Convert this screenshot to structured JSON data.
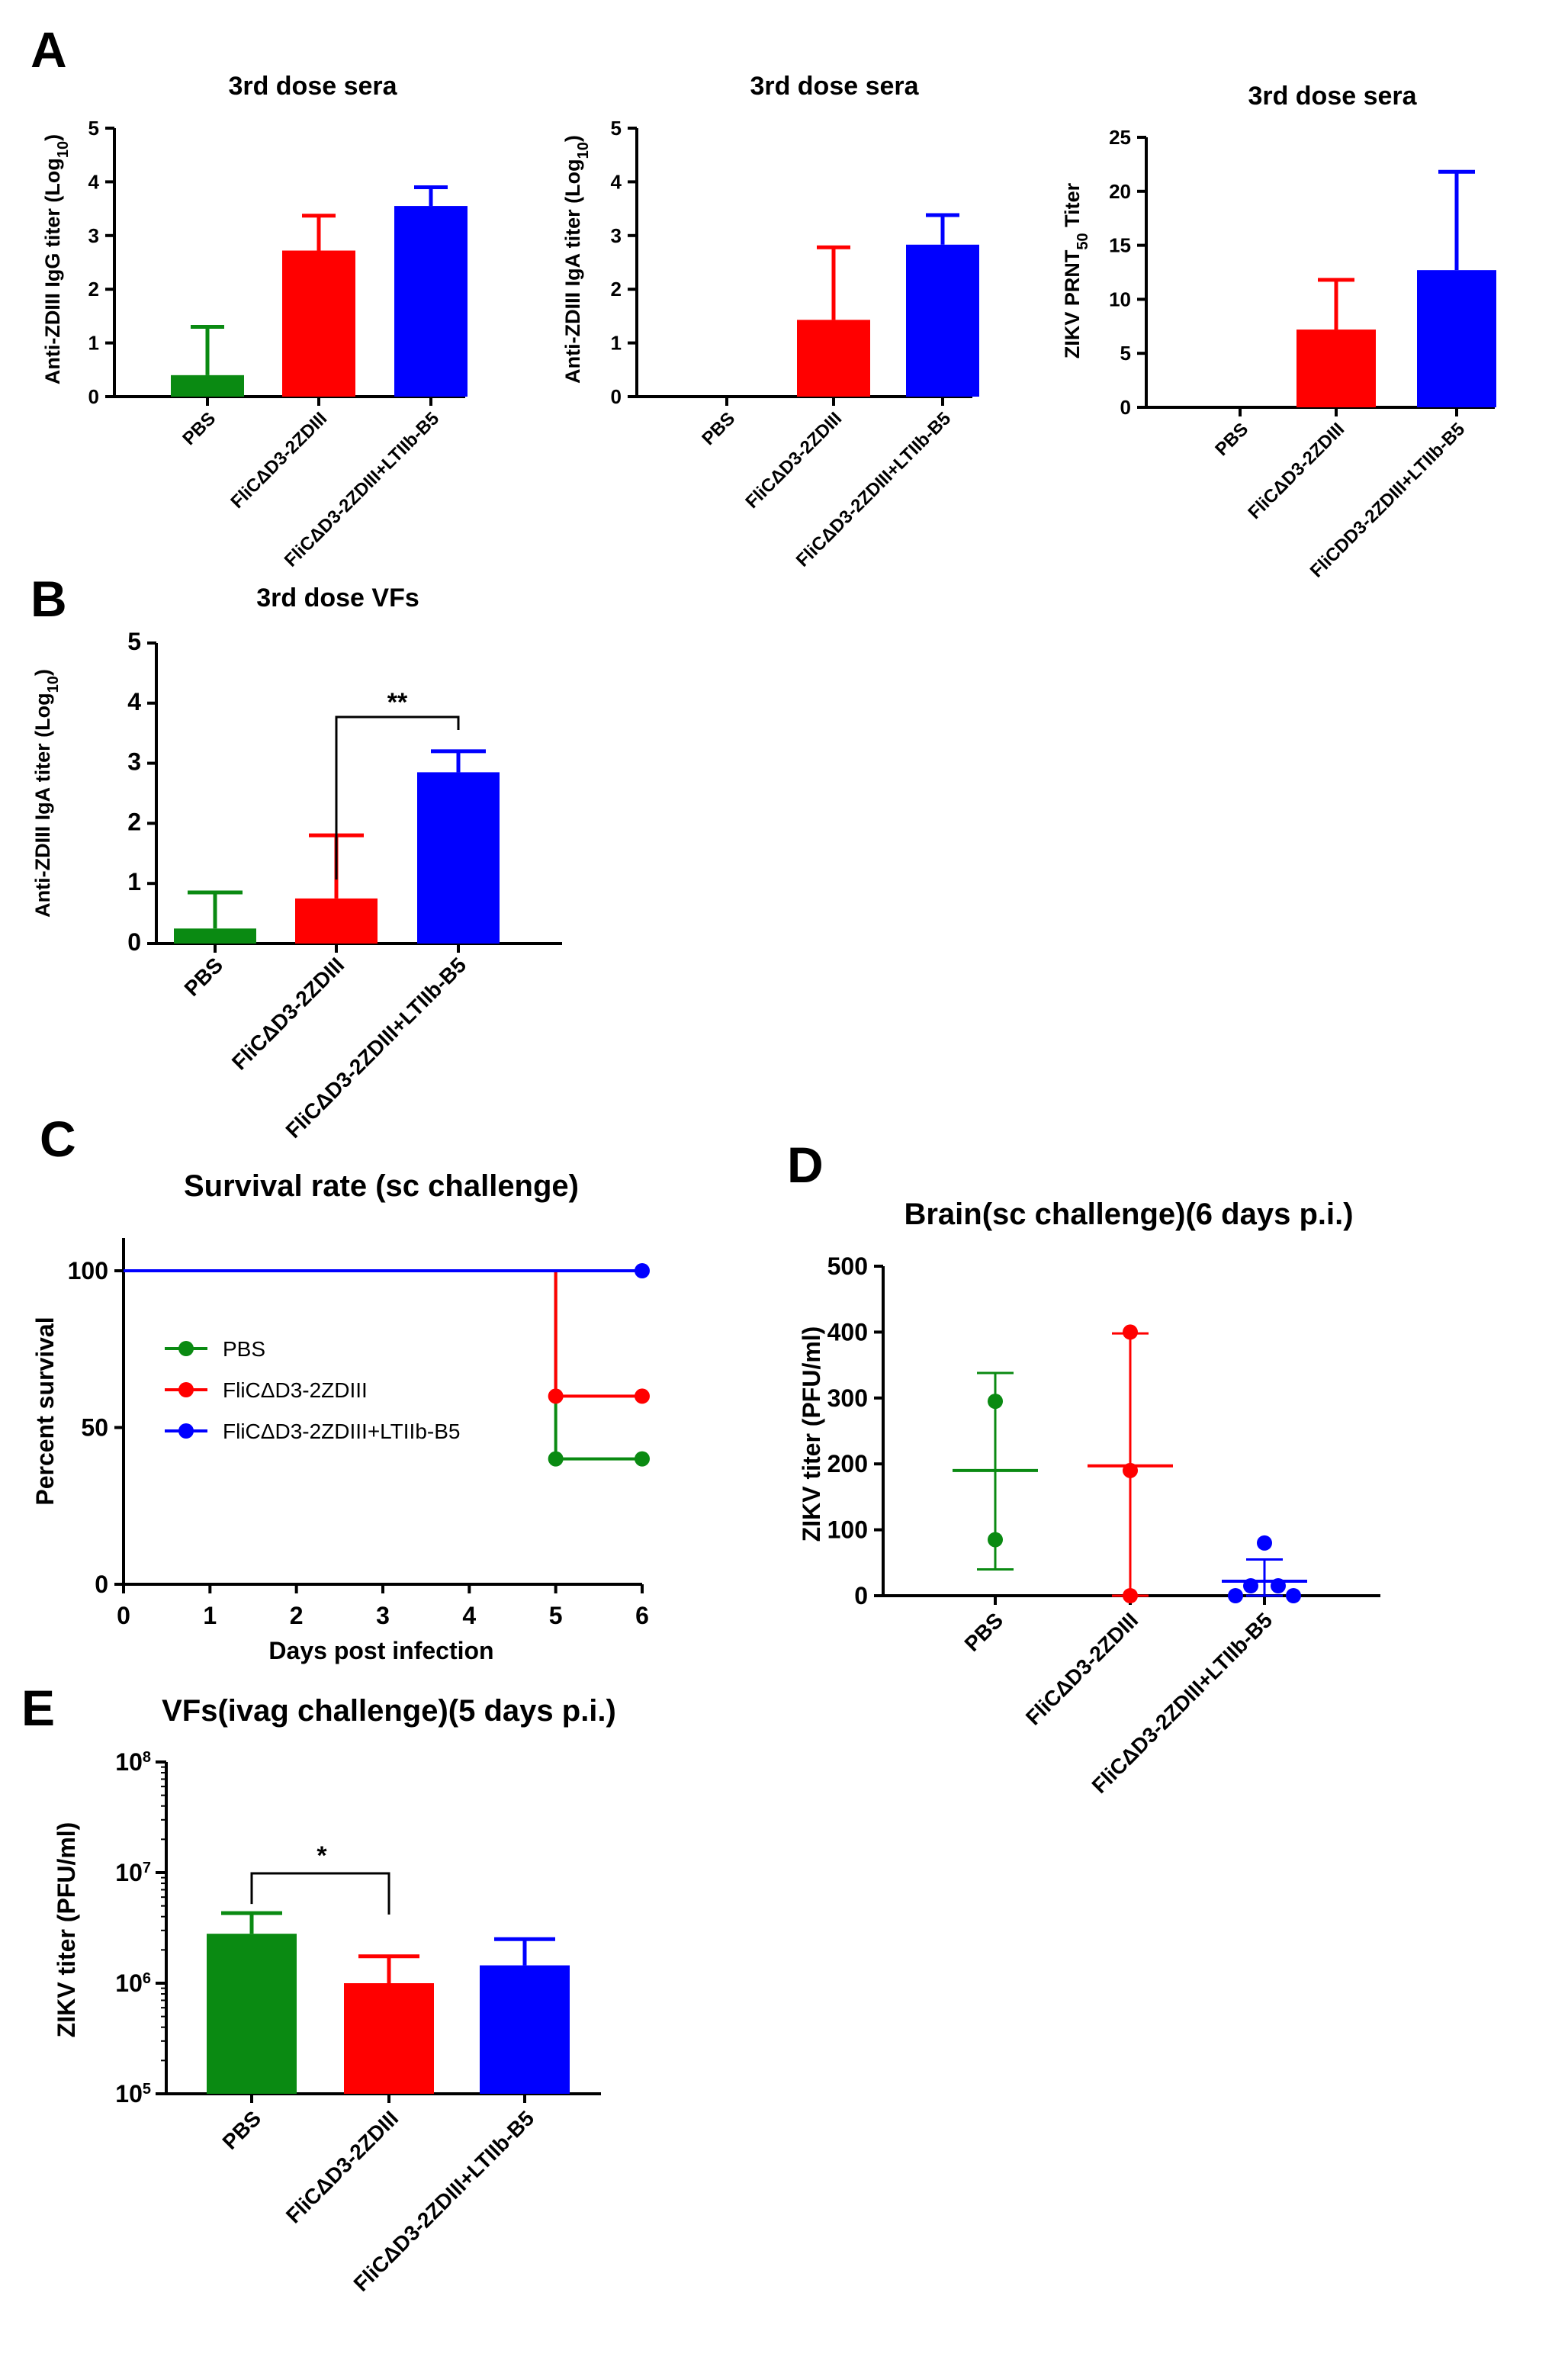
{
  "panels": [
    {
      "id": "A1",
      "letter": "A",
      "title": "3rd dose sera",
      "ylabel_main": "Anti-ZDIII IgG titer (Log",
      "ylabel_sub": "10",
      "ylabel_end": ")"
    },
    {
      "id": "A2",
      "letter": "",
      "title": "3rd dose sera",
      "ylabel_main": "Anti-ZDIII IgA titer (Log",
      "ylabel_sub": "10",
      "ylabel_end": ")"
    },
    {
      "id": "A3",
      "letter": "",
      "title": "3rd dose sera",
      "ylabel_main": "ZIKV PRNT",
      "ylabel_sub": "50",
      "ylabel_end": " Titer"
    },
    {
      "id": "B",
      "letter": "B",
      "title": "3rd dose VFs",
      "ylabel_main": "Anti-ZDIII IgA titer (Log",
      "ylabel_sub": "10",
      "ylabel_end": ")"
    },
    {
      "id": "C",
      "letter": "C",
      "title": "Survival rate (sc challenge)",
      "ylabel": "Percent survival",
      "xlabel": "Days post infection"
    },
    {
      "id": "D",
      "letter": "D",
      "title": "Brain(sc challenge)(6 days p.i.)",
      "ylabel": "ZIKV titer (PFU/ml)"
    },
    {
      "id": "E",
      "letter": "E",
      "title": "VFs(ivag challenge)(5 days p.i.)",
      "ylabel": "ZIKV titer (PFU/ml)"
    }
  ],
  "colors": {
    "PBS": "#0a8a12",
    "ZDIII": "#ff0000",
    "LTIIb": "#0000ff",
    "axis": "#000000"
  },
  "chart_data": [
    {
      "id": "A1",
      "type": "bar",
      "categories": [
        "PBS",
        "FliCΔD3-2ZDIII",
        "FliCΔD3-2ZDIII+LTIIb-B5"
      ],
      "values": [
        0.4,
        2.72,
        3.55
      ],
      "error": [
        0.9,
        0.65,
        0.35
      ],
      "ylim": [
        0,
        5
      ],
      "yticks": [
        0,
        1,
        2,
        3,
        4,
        5
      ]
    },
    {
      "id": "A2",
      "type": "bar",
      "categories": [
        "PBS",
        "FliCΔD3-2ZDIII",
        "FliCΔD3-2ZDIII+LTIIb-B5"
      ],
      "values": [
        0,
        1.43,
        2.83
      ],
      "error": [
        0,
        1.35,
        0.55
      ],
      "ylim": [
        0,
        5
      ],
      "yticks": [
        0,
        1,
        2,
        3,
        4,
        5
      ]
    },
    {
      "id": "A3",
      "type": "bar",
      "categories": [
        "PBS",
        "FliCΔD3-2ZDIII",
        "FliCDD3-2ZDIII+LTIIb-B5"
      ],
      "values": [
        0,
        7.2,
        12.7
      ],
      "error": [
        0,
        4.6,
        9.1
      ],
      "ylim": [
        0,
        25
      ],
      "yticks": [
        0,
        5,
        10,
        15,
        20,
        25
      ]
    },
    {
      "id": "B",
      "type": "bar",
      "categories": [
        "PBS",
        "FliCΔD3-2ZDIII",
        "FliCΔD3-2ZDIII+LTIIb-B5"
      ],
      "values": [
        0.25,
        0.75,
        2.85
      ],
      "error": [
        0.6,
        1.05,
        0.35
      ],
      "ylim": [
        0,
        5
      ],
      "yticks": [
        0,
        1,
        2,
        3,
        4,
        5
      ],
      "significance": [
        {
          "from": 1,
          "to": 2,
          "label": "**"
        }
      ]
    },
    {
      "id": "C",
      "type": "line",
      "x_label": "Days post infection",
      "xticks": [
        0,
        1,
        2,
        3,
        4,
        5,
        6
      ],
      "yticks": [
        0,
        50,
        100
      ],
      "xlim": [
        0,
        6
      ],
      "ylim": [
        0,
        110
      ],
      "series": [
        {
          "name": "PBS",
          "points": [
            [
              0,
              100
            ],
            [
              5,
              100
            ],
            [
              5,
              40
            ],
            [
              6,
              40
            ]
          ],
          "markers": [
            [
              5,
              40
            ],
            [
              6,
              40
            ]
          ]
        },
        {
          "name": "FliCΔD3-2ZDIII",
          "points": [
            [
              0,
              100
            ],
            [
              5,
              100
            ],
            [
              5,
              60
            ],
            [
              6,
              60
            ]
          ],
          "markers": [
            [
              5,
              60
            ],
            [
              6,
              60
            ]
          ]
        },
        {
          "name": "FliCΔD3-2ZDIII+LTIIb-B5",
          "points": [
            [
              0,
              100
            ],
            [
              6,
              100
            ]
          ],
          "markers": [
            [
              6,
              100
            ]
          ]
        }
      ],
      "legend": "center-left"
    },
    {
      "id": "D",
      "type": "scatter",
      "categories": [
        "PBS",
        "FliCΔD3-2ZDIII",
        "FliCΔD3-2ZDIII+LTIIb-B5"
      ],
      "ylim": [
        0,
        500
      ],
      "yticks": [
        0,
        100,
        200,
        300,
        400,
        500
      ],
      "groups": [
        {
          "points": [
            295,
            85
          ],
          "mean": 190,
          "err_low": 40,
          "err_high": 338
        },
        {
          "points": [
            400,
            190,
            0
          ],
          "mean": 197,
          "err_low": 0,
          "err_high": 398
        },
        {
          "points": [
            80,
            15,
            15,
            0,
            0
          ],
          "mean": 22,
          "err_low": 0,
          "err_high": 55
        }
      ]
    },
    {
      "id": "E",
      "type": "bar",
      "scale": "log",
      "categories": [
        "PBS",
        "FliCΔD3-2ZDIII",
        "FliCΔD3-2ZDIII+LTIIb-B5"
      ],
      "values": [
        2800000,
        1000000,
        1450000
      ],
      "error_high": [
        4300000,
        1750000,
        2500000
      ],
      "ylim": [
        100000,
        100000000
      ],
      "yticks": [
        {
          "base": "10",
          "exp": "5",
          "value": 100000
        },
        {
          "base": "10",
          "exp": "6",
          "value": 1000000
        },
        {
          "base": "10",
          "exp": "7",
          "value": 10000000
        },
        {
          "base": "10",
          "exp": "8",
          "value": 100000000
        }
      ],
      "significance": [
        {
          "from": 0,
          "to": 1,
          "label": "*"
        }
      ]
    }
  ]
}
